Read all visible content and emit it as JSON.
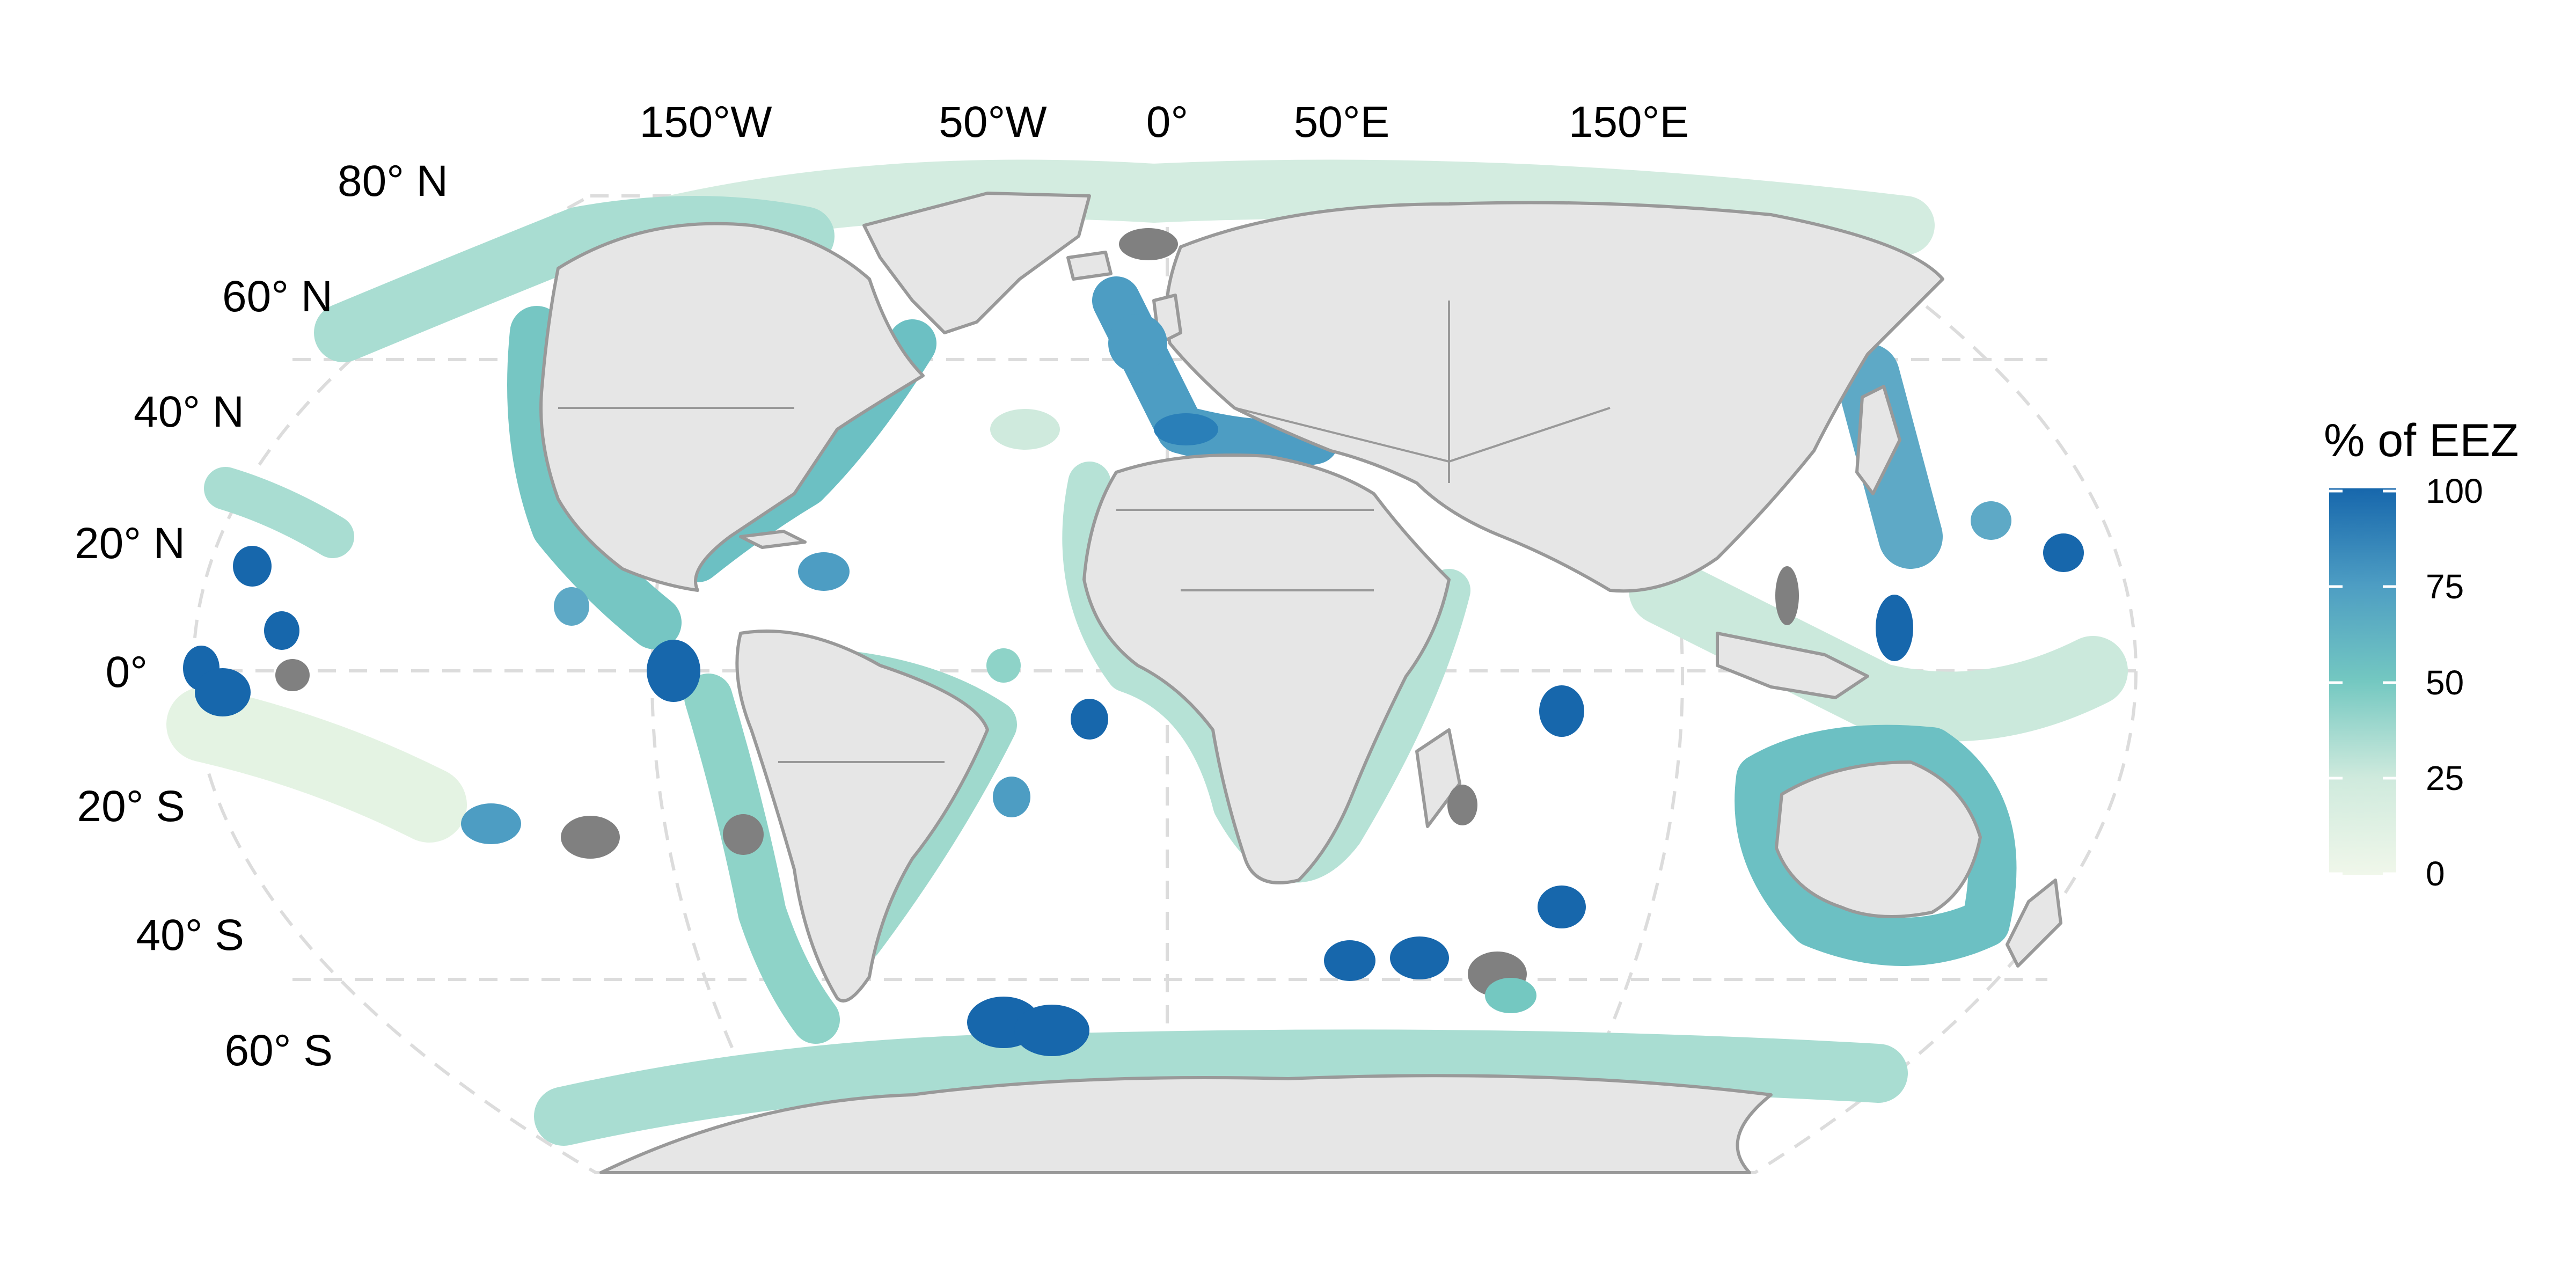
{
  "map": {
    "projection": "Robinson",
    "graticule_style": "dashed",
    "lon_labels": [
      "150°W",
      "50°W",
      "0°",
      "50°E",
      "150°E"
    ],
    "lat_labels": [
      "80° N",
      "60° N",
      "40° N",
      "20° N",
      "0°",
      "20° S",
      "40° S",
      "60° S"
    ]
  },
  "legend": {
    "title": "% of EEZ",
    "ticks": [
      "100",
      "75",
      "50",
      "25",
      "0"
    ],
    "scale_min": 0,
    "scale_max": 100,
    "colors": [
      "#f0f7ea",
      "#cfeadd",
      "#9fd9cd",
      "#6fc4c3",
      "#4d9dc3",
      "#1767ac"
    ],
    "no_data_color": "#808080"
  },
  "colors": {
    "land": "#e6e6e6",
    "border": "#999999",
    "graticule": "#dddddd"
  }
}
